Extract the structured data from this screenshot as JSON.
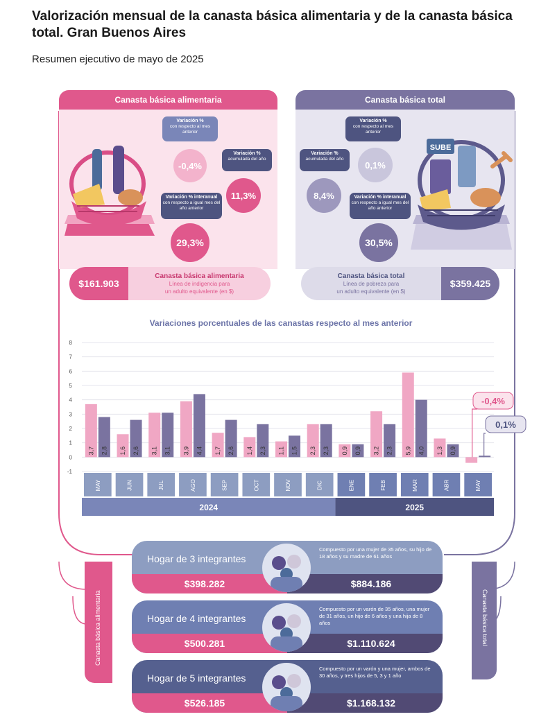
{
  "header": {
    "title": "Valorización mensual de la canasta básica alimentaria y de la canasta básica total. Gran Buenos Aires",
    "subtitle": "Resumen ejecutivo de mayo de 2025"
  },
  "colors": {
    "cba": "#e0588c",
    "cbt": "#7a73a0",
    "cba_light": "#f3c7d8",
    "cbt_light": "#c9c6dc",
    "dark": "#4e5480"
  },
  "cba": {
    "header": "Canasta básica alimentaria",
    "monthly": {
      "title": "Variación %",
      "desc": "con respecto al mes anterior",
      "value": "-0,4%"
    },
    "accum": {
      "title": "Variación %",
      "desc": "acumulada del año",
      "value": "11,3%"
    },
    "yoy": {
      "title": "Variación % interanual",
      "desc": "con respecto a igual mes del año anterior",
      "value": "29,3%"
    },
    "amount": "$161.903",
    "name": "Canasta básica alimentaria",
    "line1": "Línea de indigencia para",
    "line2": "un adulto equivalente (en $)"
  },
  "cbt": {
    "header": "Canasta básica total",
    "monthly": {
      "title": "Variación %",
      "desc": "con respecto al mes anterior",
      "value": "0,1%"
    },
    "accum": {
      "title": "Variación %",
      "desc": "acumulada del año",
      "value": "8,4%"
    },
    "yoy": {
      "title": "Variación % interanual",
      "desc": "con respecto a igual mes del año anterior",
      "value": "30,5%"
    },
    "amount": "$359.425",
    "name": "Canasta básica total",
    "line1": "Línea de pobreza para",
    "line2": "un adulto equivalente (en $)",
    "sube": "SUBE"
  },
  "chart_data": {
    "type": "bar",
    "title": "Variaciones porcentuales de las canastas respecto al mes anterior",
    "categories": [
      "MAY",
      "JUN",
      "JUL",
      "AGO",
      "SEP",
      "OCT",
      "NOV",
      "DIC",
      "ENE",
      "FEB",
      "MAR",
      "ABR",
      "MAY"
    ],
    "years": [
      {
        "label": "2024",
        "span": 8
      },
      {
        "label": "2025",
        "span": 5
      }
    ],
    "series": [
      {
        "values": [
          3.7,
          1.6,
          3.1,
          3.9,
          1.7,
          1.4,
          1.1,
          2.3,
          0.9,
          3.2,
          5.9,
          1.3,
          -0.4
        ],
        "labels": [
          "3,7",
          "1,6",
          "3,1",
          "3,9",
          "1,7",
          "1,4",
          "1,1",
          "2,3",
          "0,9",
          "3,2",
          "5,9",
          "1,3",
          "-0,4%"
        ],
        "color": "#f0a7c4"
      },
      {
        "values": [
          2.8,
          2.6,
          3.1,
          4.4,
          2.6,
          2.3,
          1.5,
          2.3,
          0.9,
          2.3,
          4.0,
          0.9,
          0.1
        ],
        "labels": [
          "2,8",
          "2,6",
          "3,1",
          "4,4",
          "2,6",
          "2,3",
          "1,5",
          "2,3",
          "0,9",
          "2,3",
          "4,0",
          "0,9",
          "0,1%"
        ],
        "color": "#7a73a0"
      }
    ],
    "ylim": [
      -1,
      8
    ],
    "yticks": [
      -1,
      0,
      1,
      2,
      3,
      4,
      5,
      6,
      7,
      8
    ],
    "grid": true
  },
  "households": [
    {
      "name": "Hogar de 3 integrantes",
      "cba": "$398.282",
      "cbt": "$884.186",
      "desc": "Compuesto por una mujer de 35 años, su hijo de 18 años y su madre de 61 años",
      "bg": "#8d9dc1"
    },
    {
      "name": "Hogar de 4 integrantes",
      "cba": "$500.281",
      "cbt": "$1.110.624",
      "desc": "Compuesto por un varón de 35 años, una mujer de 31 años, un hijo de 6 años y una hija de 8 años",
      "bg": "#6f7fb2"
    },
    {
      "name": "Hogar de 5 integrantes",
      "cba": "$526.185",
      "cbt": "$1.168.132",
      "desc": "Compuesto por un varón y una mujer, ambos de 30 años, y tres hijos de 5, 3 y 1 año",
      "bg": "#55608f"
    }
  ],
  "side": {
    "left": "Canasta básica alimentaria",
    "right": "Canasta básica total"
  }
}
